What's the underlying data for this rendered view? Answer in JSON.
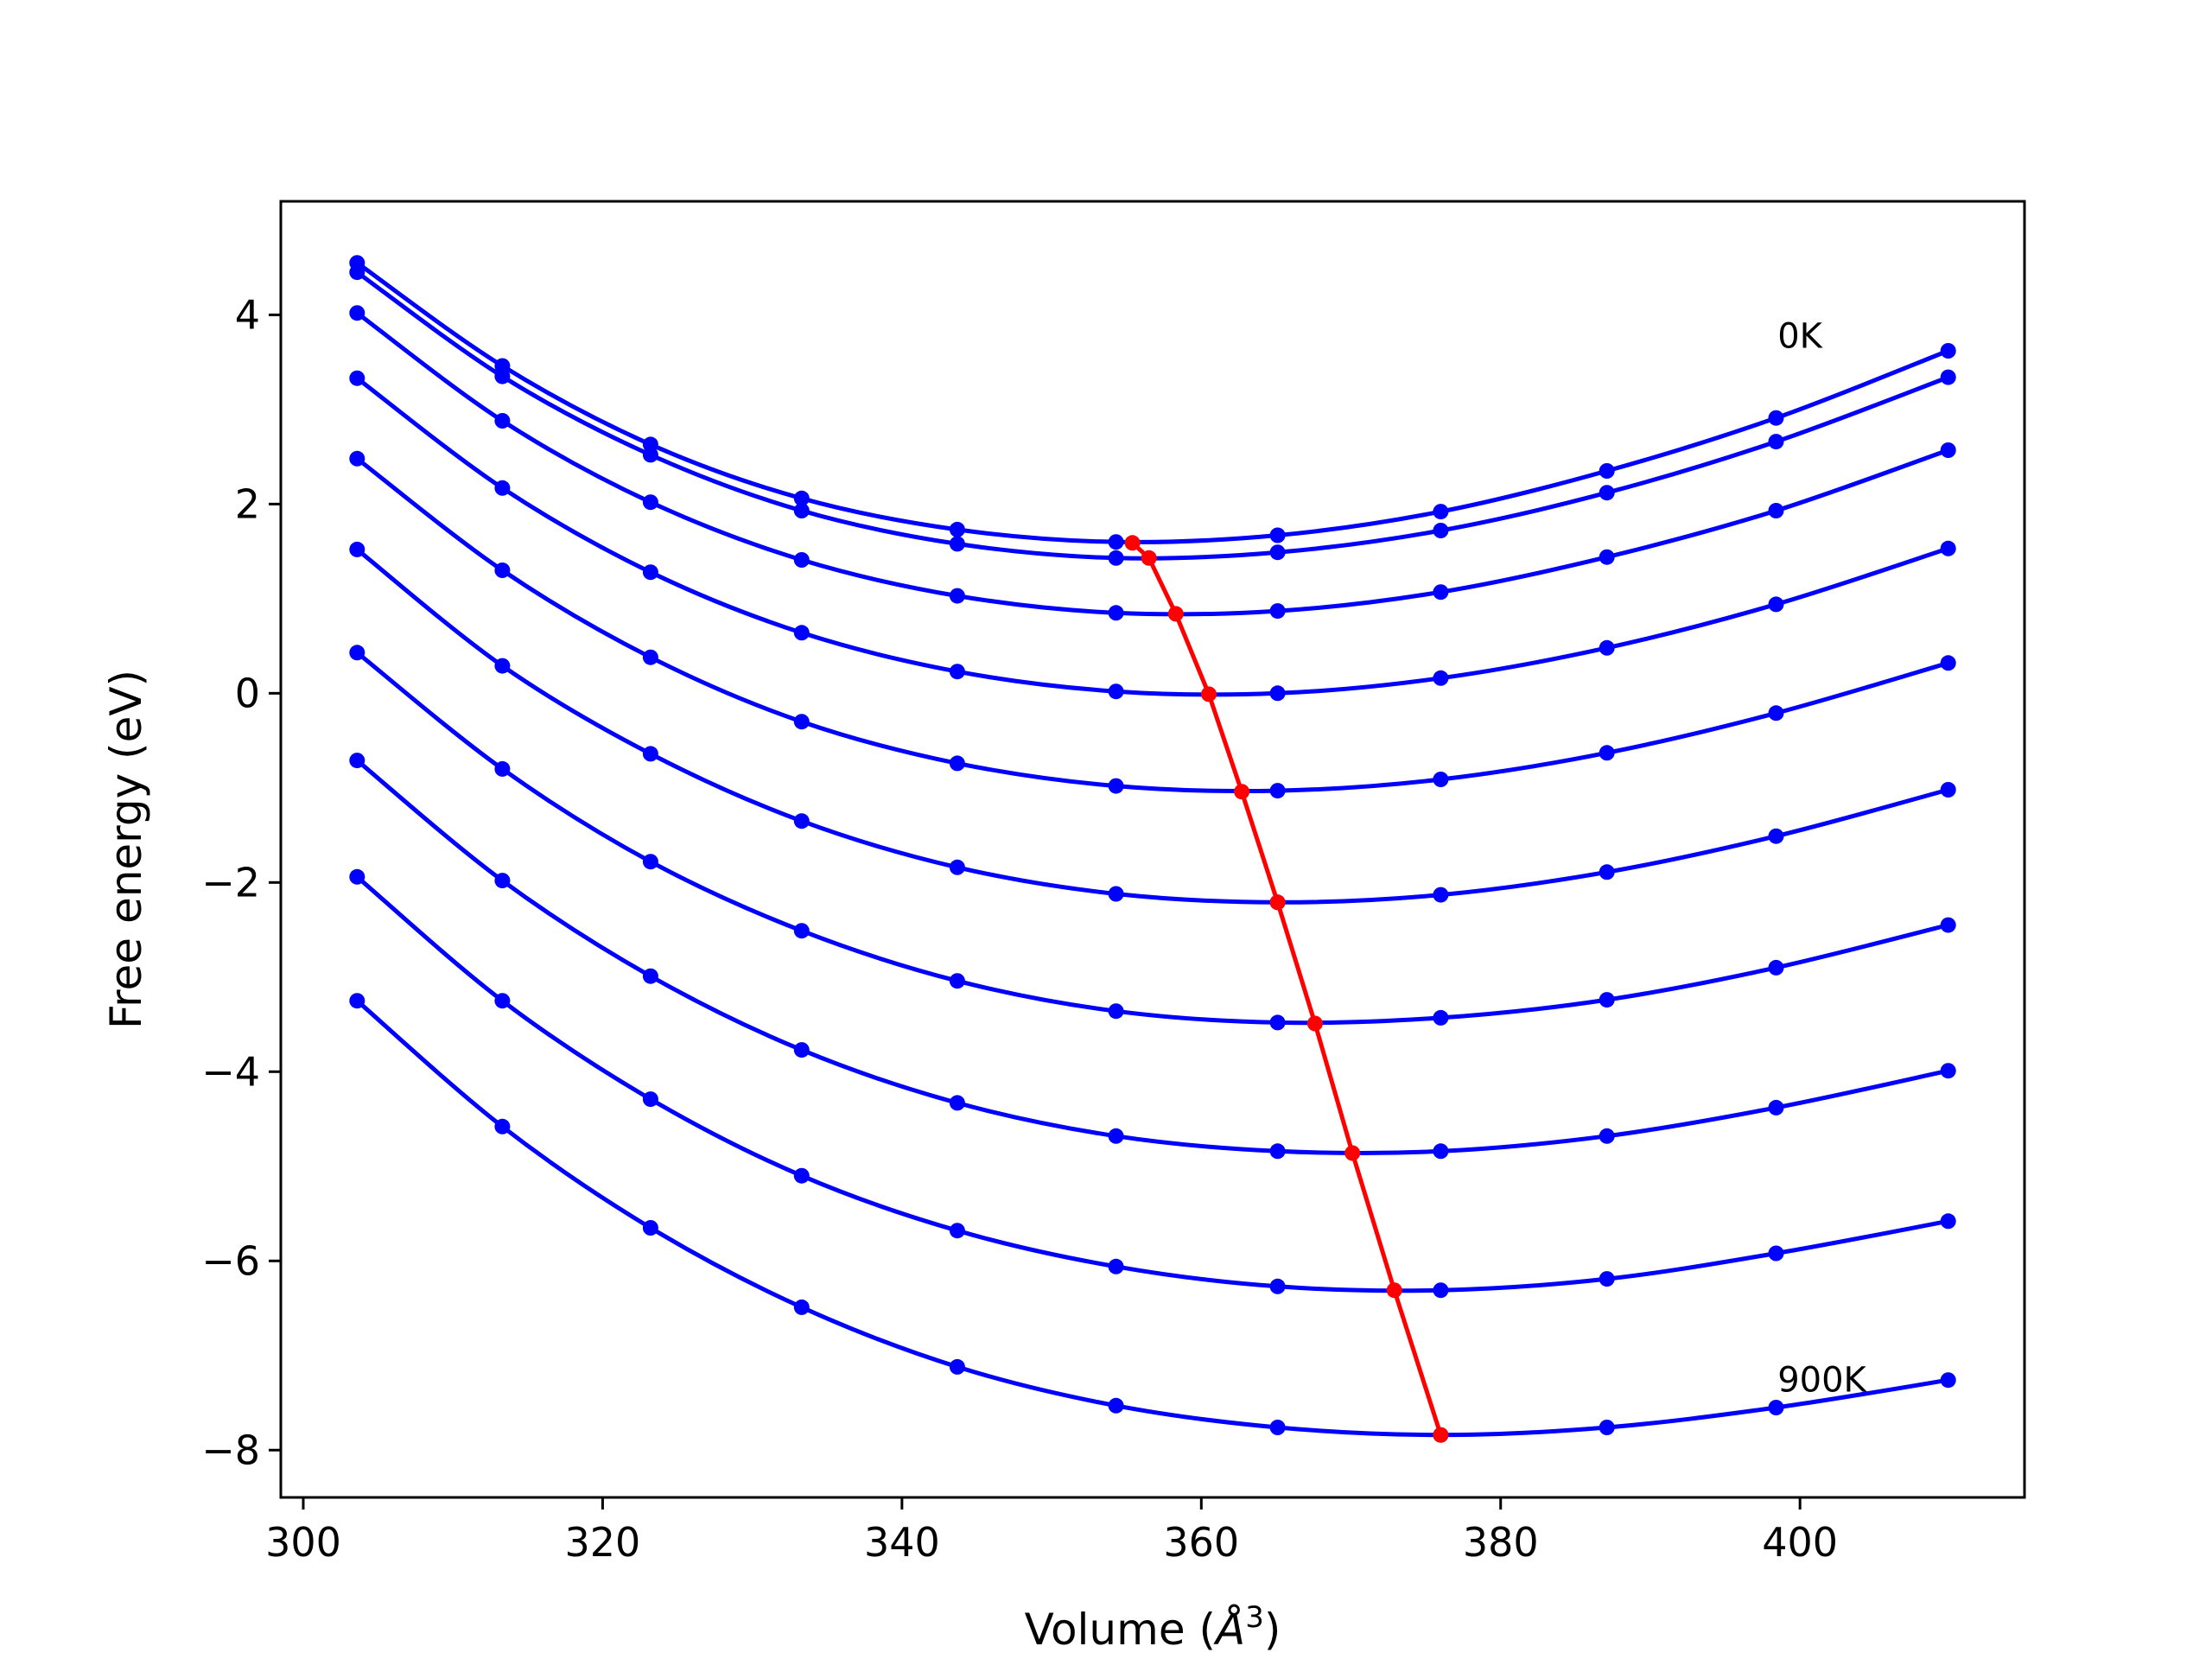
{
  "chart_data": {
    "type": "line",
    "title": "",
    "xlabel": "Volume (",
    "xlabel_symbol": "Å",
    "xlabel_exp": "3",
    "xlabel_close": ")",
    "ylabel": "Free energy (eV)",
    "xlim": [
      298.5,
      415
    ],
    "ylim": [
      -8.5,
      5.2
    ],
    "xticks": [
      300,
      320,
      340,
      360,
      380,
      400
    ],
    "xtick_labels": [
      "300",
      "320",
      "340",
      "360",
      "380",
      "400"
    ],
    "yticks": [
      4,
      2,
      0,
      -2,
      -4,
      -6,
      -8
    ],
    "ytick_labels": [
      "4",
      "2",
      "0",
      "−2",
      "−4",
      "−6",
      "−8"
    ],
    "grid": false,
    "volumes": [
      303.6,
      313.3,
      323.2,
      333.3,
      343.7,
      354.3,
      365.1,
      376.0,
      387.1,
      398.4,
      409.9
    ],
    "series": [
      {
        "label": "0K",
        "values": [
          4.55,
          3.46,
          2.63,
          2.06,
          1.73,
          1.6,
          1.67,
          1.92,
          2.35,
          2.91,
          3.62
        ],
        "min": [
          355.4,
          1.59
        ]
      },
      {
        "values": [
          4.45,
          3.35,
          2.52,
          1.93,
          1.58,
          1.43,
          1.49,
          1.72,
          2.12,
          2.66,
          3.34
        ],
        "min": [
          356.5,
          1.43
        ]
      },
      {
        "values": [
          4.02,
          2.88,
          2.02,
          1.41,
          1.03,
          0.85,
          0.87,
          1.07,
          1.44,
          1.93,
          2.57
        ],
        "min": [
          358.3,
          0.84
        ]
      },
      {
        "values": [
          3.33,
          2.17,
          1.28,
          0.64,
          0.23,
          0.02,
          0.0,
          0.16,
          0.48,
          0.94,
          1.53
        ],
        "min": [
          360.5,
          -0.01
        ]
      },
      {
        "values": [
          2.48,
          1.3,
          0.38,
          -0.3,
          -0.74,
          -0.98,
          -1.03,
          -0.91,
          -0.63,
          -0.21,
          0.32
        ],
        "min": [
          362.7,
          -1.04
        ]
      },
      {
        "values": [
          1.52,
          0.29,
          -0.64,
          -1.35,
          -1.84,
          -2.12,
          -2.21,
          -2.13,
          -1.89,
          -1.51,
          -1.02
        ],
        "min": [
          365.1,
          -2.21
        ]
      },
      {
        "values": [
          0.43,
          -0.8,
          -1.78,
          -2.51,
          -3.04,
          -3.36,
          -3.48,
          -3.43,
          -3.24,
          -2.9,
          -2.45
        ],
        "min": [
          367.6,
          -3.49
        ]
      },
      {
        "values": [
          -0.71,
          -1.98,
          -2.99,
          -3.77,
          -4.33,
          -4.68,
          -4.84,
          -4.84,
          -4.68,
          -4.38,
          -3.99
        ],
        "min": [
          370.1,
          -4.86
        ]
      },
      {
        "values": [
          -1.94,
          -3.25,
          -4.29,
          -5.1,
          -5.68,
          -6.06,
          -6.27,
          -6.31,
          -6.19,
          -5.92,
          -5.58
        ],
        "min": [
          372.9,
          -6.31
        ]
      },
      {
        "label": "900K",
        "values": [
          -3.25,
          -4.58,
          -5.65,
          -6.49,
          -7.12,
          -7.53,
          -7.76,
          -7.84,
          -7.76,
          -7.55,
          -7.26
        ],
        "min": [
          376.0,
          -7.84
        ]
      }
    ],
    "colors": {
      "curves": "#0000ff",
      "minimum_path": "#ff0000"
    },
    "annotations": [
      {
        "text": "0K",
        "x": 398.5,
        "y": 3.65
      },
      {
        "text": "900K",
        "x": 398.5,
        "y": -7.38
      }
    ]
  }
}
